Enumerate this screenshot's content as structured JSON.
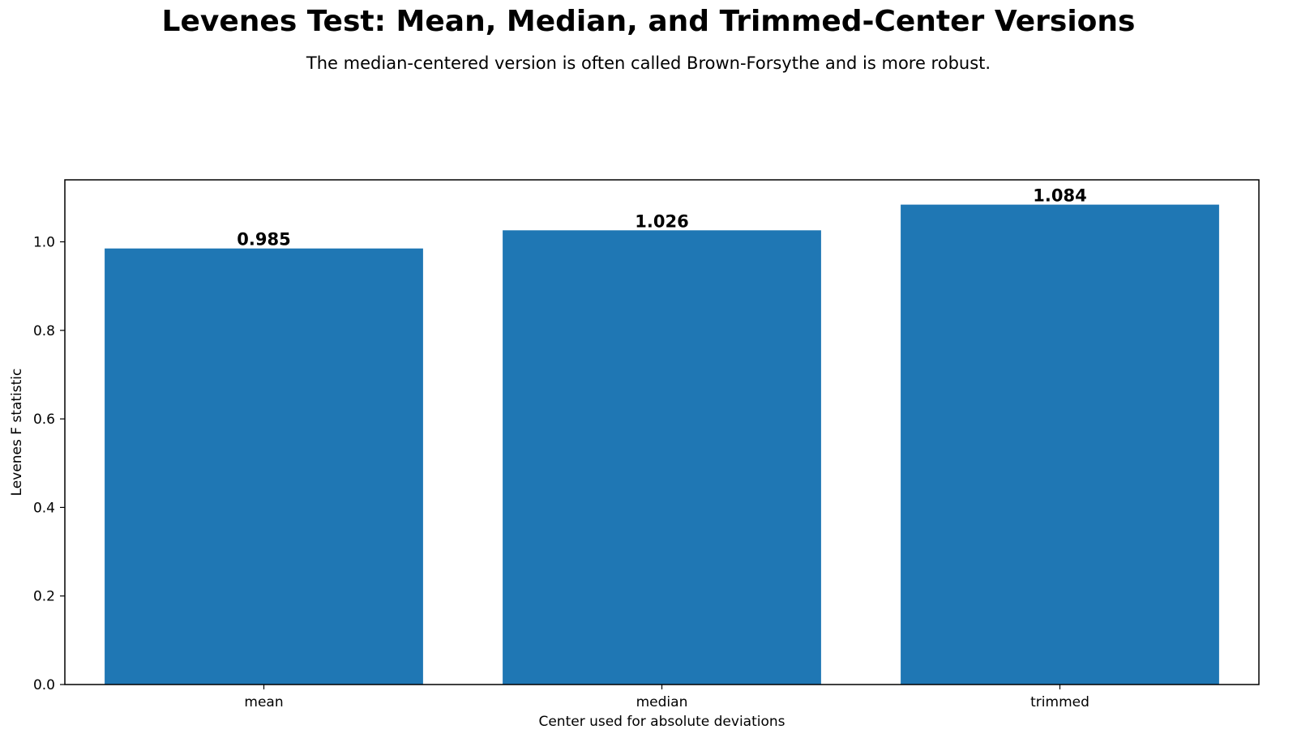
{
  "title": "Levenes Test: Mean, Median, and Trimmed-Center Versions",
  "subtitle": "The median-centered version is often called Brown-Forsythe and is more robust.",
  "chart_data": {
    "type": "bar",
    "categories": [
      "mean",
      "median",
      "trimmed"
    ],
    "values": [
      0.985,
      1.026,
      1.084
    ],
    "value_labels": [
      "0.985",
      "1.026",
      "1.084"
    ],
    "xlabel": "Center used for absolute deviations",
    "ylabel": "Levenes F statistic",
    "ylim": [
      0,
      1.14
    ],
    "yticks": [
      0.0,
      0.2,
      0.4,
      0.6,
      0.8,
      1.0
    ],
    "ytick_labels": [
      "0.0",
      "0.2",
      "0.4",
      "0.6",
      "0.8",
      "1.0"
    ],
    "bar_color": "#1f77b4",
    "grid": false,
    "legend": "none"
  }
}
